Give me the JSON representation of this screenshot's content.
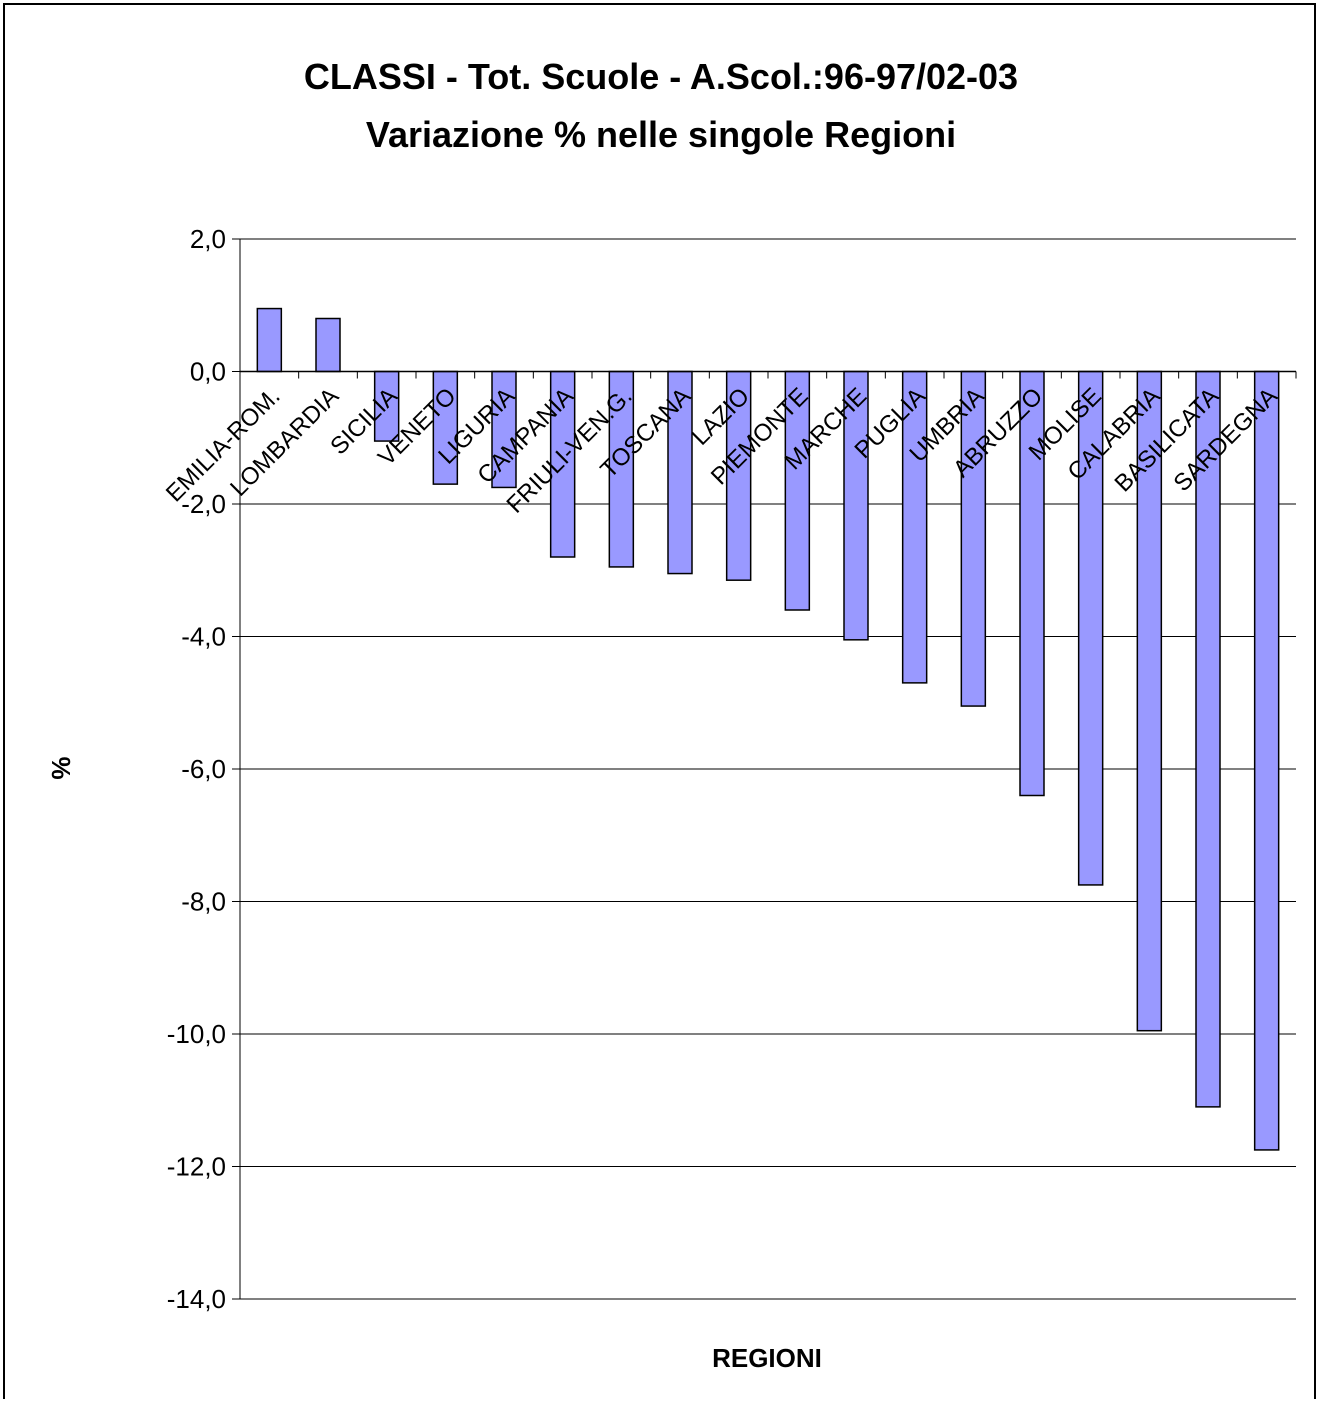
{
  "chart_data": {
    "type": "bar",
    "title": "CLASSI - Tot. Scuole - A.Scol.:96-97/02-03",
    "subtitle": "Variazione % nelle singole Regioni",
    "xlabel": "REGIONI",
    "ylabel": "%",
    "ylim": [
      -14,
      2
    ],
    "ytick_labels": [
      "2,0",
      "0,0",
      "-2,0",
      "-4,0",
      "-6,0",
      "-8,0",
      "-10,0",
      "-12,0",
      "-14,0"
    ],
    "grid": true,
    "bar_color": "#9999ff",
    "categories": [
      "EMILIA-ROM.",
      "LOMBARDIA",
      "SICILIA",
      "VENETO",
      "LIGURIA",
      "CAMPANIA",
      "FRIULI-VEN.G.",
      "TOSCANA",
      "LAZIO",
      "PIEMONTE",
      "MARCHE",
      "PUGLIA",
      "UMBRIA",
      "ABRUZZO",
      "MOLISE",
      "CALABRIA",
      "BASILICATA",
      "SARDEGNA"
    ],
    "values": [
      0.95,
      0.8,
      -1.05,
      -1.7,
      -1.75,
      -2.8,
      -2.95,
      -3.05,
      -3.15,
      -3.6,
      -4.05,
      -4.7,
      -5.05,
      -6.4,
      -7.75,
      -9.95,
      -11.1,
      -11.75
    ]
  }
}
